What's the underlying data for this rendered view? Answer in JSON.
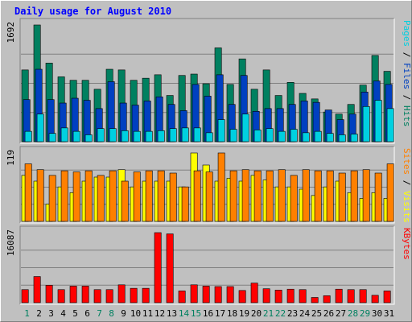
{
  "chart_data": {
    "type": "bar",
    "title": "Daily usage for August 2010",
    "categories": [
      "1",
      "2",
      "3",
      "4",
      "5",
      "6",
      "7",
      "8",
      "9",
      "10",
      "11",
      "12",
      "13",
      "14",
      "15",
      "16",
      "17",
      "18",
      "19",
      "20",
      "21",
      "22",
      "23",
      "24",
      "25",
      "26",
      "27",
      "28",
      "29",
      "30",
      "31"
    ],
    "weekend_days": [
      "1",
      "7",
      "8",
      "14",
      "15",
      "21",
      "22",
      "28",
      "29"
    ],
    "panels": [
      {
        "id": "hits",
        "ymax": 1692,
        "ymax_label": "1692",
        "right_labels": [
          {
            "text": "Pages",
            "color": "#00d0e0"
          },
          {
            "text": "Files",
            "color": "#0040c0"
          },
          {
            "text": "Hits",
            "color": "#008060"
          }
        ],
        "series": [
          {
            "name": "Hits",
            "color": "#008060",
            "values": [
              1040,
              1692,
              1140,
              940,
              890,
              890,
              760,
              1050,
              1040,
              890,
              920,
              970,
              670,
              960,
              980,
              840,
              1360,
              830,
              1200,
              760,
              1040,
              670,
              860,
              700,
              620,
              430,
              400,
              540,
              820,
              1250,
              1020
            ]
          },
          {
            "name": "Files",
            "color": "#0040c0",
            "values": [
              610,
              1050,
              610,
              560,
              630,
              600,
              480,
              870,
              560,
              530,
              590,
              650,
              540,
              450,
              830,
              660,
              970,
              540,
              960,
              440,
              480,
              480,
              540,
              590,
              570,
              460,
              320,
              400,
              720,
              880,
              830
            ]
          },
          {
            "name": "Pages",
            "color": "#00d0e0",
            "values": [
              150,
              400,
              120,
              200,
              150,
              100,
              190,
              190,
              160,
              150,
              150,
              160,
              190,
              200,
              200,
              130,
              320,
              180,
              400,
              170,
              190,
              150,
              180,
              130,
              150,
              120,
              100,
              110,
              510,
              600,
              480
            ]
          }
        ]
      },
      {
        "id": "visits",
        "ymax": 119,
        "ymax_label": "119",
        "right_labels": [
          {
            "text": "Sites",
            "color": "#ff8000"
          },
          {
            "text": "Visits",
            "color": "#ffff00"
          }
        ],
        "series": [
          {
            "name": "Visits",
            "color": "#ffff00",
            "values": [
              80,
              70,
              30,
              60,
              50,
              70,
              77,
              77,
              90,
              60,
              70,
              70,
              70,
              60,
              119,
              98,
              70,
              75,
              70,
              80,
              72,
              60,
              60,
              56,
              45,
              60,
              70,
              50,
              40,
              50,
              40
            ]
          },
          {
            "name": "Sites",
            "color": "#ff8000",
            "values": [
              100,
              90,
              80,
              88,
              86,
              88,
              80,
              88,
              70,
              86,
              88,
              88,
              84,
              60,
              88,
              86,
              119,
              88,
              90,
              88,
              88,
              90,
              80,
              90,
              88,
              88,
              84,
              88,
              90,
              84,
              100
            ]
          }
        ]
      },
      {
        "id": "kbytes",
        "ymax": 16087,
        "ymax_label": "16087",
        "right_labels": [
          {
            "text": "KBytes",
            "color": "#ff0000"
          }
        ],
        "series": [
          {
            "name": "KBytes",
            "color": "#ff0000",
            "values": [
              3000,
              6000,
              4000,
              3000,
              3800,
              3800,
              3000,
              3000,
              4100,
              3300,
              3300,
              16087,
              15800,
              2700,
              4100,
              3800,
              3700,
              3700,
              2800,
              4500,
              3200,
              2900,
              3100,
              3000,
              1200,
              1600,
              3100,
              3000,
              3000,
              1700,
              2700
            ]
          }
        ]
      }
    ]
  }
}
